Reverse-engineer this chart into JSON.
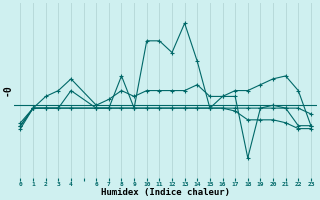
{
  "background_color": "#cff0f0",
  "line_color": "#006868",
  "xlabel": "Humidex (Indice chaleur)",
  "ylabel": "-0",
  "vline_color": "#b8dada",
  "vline_positions": [
    0,
    1,
    2,
    3,
    4,
    5,
    6,
    7,
    8,
    9,
    10,
    11,
    12,
    13,
    14,
    15,
    16,
    17,
    18,
    19,
    20,
    21,
    22,
    23
  ],
  "series": [
    {
      "x": [
        0,
        1,
        2,
        3,
        4,
        6,
        7,
        8,
        9,
        10,
        11,
        12,
        13,
        14,
        15,
        16,
        17,
        18,
        19,
        20,
        21,
        22,
        23
      ],
      "y": [
        -0.8,
        -0.1,
        -0.1,
        -0.1,
        -0.1,
        -0.1,
        -0.1,
        -0.1,
        -0.1,
        -0.1,
        -0.1,
        -0.1,
        -0.1,
        -0.1,
        -0.1,
        -0.1,
        -0.1,
        -0.1,
        -0.1,
        -0.1,
        -0.1,
        -0.1,
        -0.3
      ]
    },
    {
      "x": [
        0,
        1,
        2,
        3,
        4,
        6,
        7,
        8,
        9,
        10,
        11,
        12,
        13,
        14,
        15,
        16,
        17,
        18,
        19,
        20,
        21,
        22,
        23
      ],
      "y": [
        -0.6,
        -0.1,
        -0.1,
        -0.1,
        -0.1,
        -0.1,
        -0.1,
        -0.1,
        -0.1,
        -0.1,
        -0.1,
        -0.1,
        -0.1,
        -0.1,
        -0.1,
        -0.1,
        -0.2,
        -0.5,
        -0.5,
        -0.5,
        -0.6,
        -0.8,
        -0.8
      ]
    },
    {
      "x": [
        0,
        1,
        2,
        3,
        4,
        6,
        7,
        8,
        9,
        10,
        11,
        12,
        13,
        14,
        15,
        16,
        17,
        18,
        19,
        20,
        21,
        22,
        23
      ],
      "y": [
        -0.7,
        -0.1,
        -0.1,
        -0.1,
        0.5,
        -0.1,
        -0.1,
        1.0,
        -0.1,
        2.2,
        2.2,
        1.8,
        2.8,
        1.5,
        -0.1,
        0.3,
        0.3,
        -1.8,
        -0.1,
        0.0,
        -0.1,
        -0.7,
        -0.7
      ]
    },
    {
      "x": [
        0,
        1,
        2,
        3,
        4,
        6,
        7,
        8,
        9,
        10,
        11,
        12,
        13,
        14,
        15,
        16,
        17,
        18,
        19,
        20,
        21,
        22,
        23
      ],
      "y": [
        -0.7,
        -0.1,
        0.3,
        0.5,
        0.9,
        0.0,
        0.2,
        0.5,
        0.3,
        0.5,
        0.5,
        0.5,
        0.5,
        0.7,
        0.3,
        0.3,
        0.5,
        0.5,
        0.7,
        0.9,
        1.0,
        0.5,
        -0.7
      ]
    }
  ],
  "ylim": [
    -2.5,
    3.5
  ],
  "xlim": [
    -0.5,
    23.5
  ],
  "figsize": [
    3.2,
    2.0
  ],
  "dpi": 100
}
